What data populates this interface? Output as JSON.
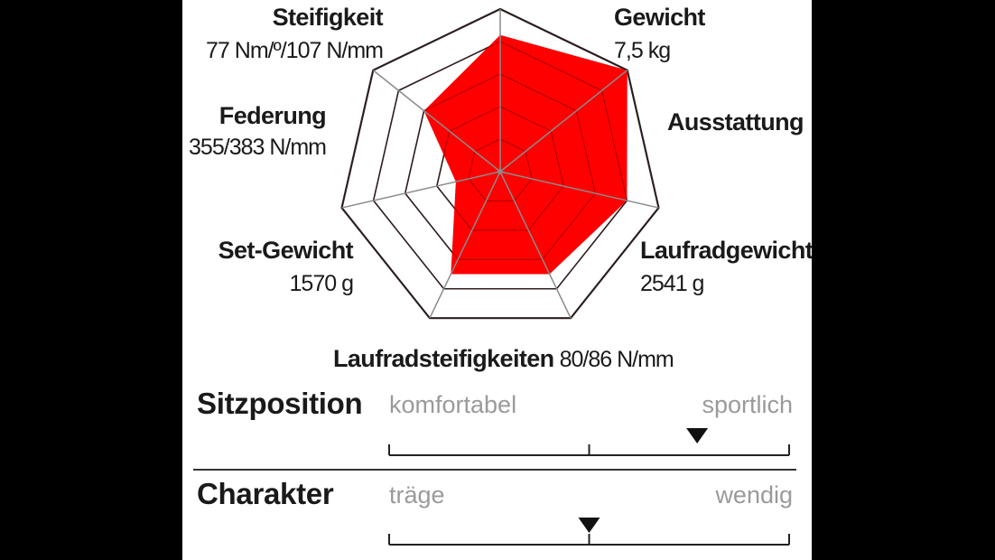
{
  "chart_data": {
    "type": "radar",
    "axes": [
      {
        "name": "Gewicht",
        "detail": "7,5 kg"
      },
      {
        "name": "Ausstattung",
        "detail": ""
      },
      {
        "name": "Laufradgewicht",
        "detail": "2541 g"
      },
      {
        "name": "Laufradsteifigkeiten",
        "detail": "80/86 N/mm"
      },
      {
        "name": "Set-Gewicht",
        "detail": "1570 g"
      },
      {
        "name": "Federung",
        "detail": "355/383 N/mm"
      },
      {
        "name": "Steifigkeit",
        "detail": "77 Nm/º/107 N/mm"
      }
    ],
    "levels": 5,
    "values": [
      4.2,
      5.0,
      4.0,
      3.5,
      3.5,
      1.4,
      3.0
    ],
    "colors": {
      "fill": "#ff0000",
      "grid": "#2a2a2a",
      "spoke": "#8a8a8a"
    }
  },
  "ratings": [
    {
      "title": "Sitzposition",
      "left": "komfortabel",
      "right": "sportlich",
      "value": 0.77
    },
    {
      "title": "Charakter",
      "left": "träge",
      "right": "wendig",
      "value": 0.5
    }
  ]
}
